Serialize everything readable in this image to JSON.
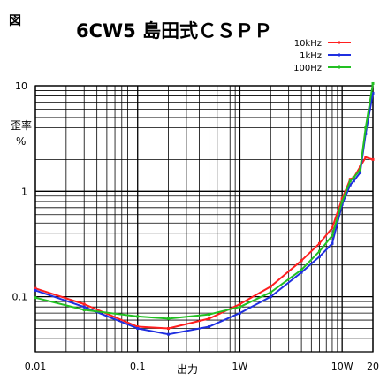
{
  "figure_label": "図",
  "colors": {
    "10kHz": "#ff1f1f",
    "1kHz": "#1f2fe0",
    "100Hz": "#22c022",
    "grid": "#000000"
  },
  "chart_data": {
    "type": "line",
    "title": "6CW5 島田式ＣＳＰＰ",
    "xlabel": "出力",
    "ylabel_line1": "歪率",
    "ylabel_line2": "%",
    "x_scale": "log",
    "y_scale": "log",
    "xlim": [
      0.01,
      20
    ],
    "ylim": [
      0.03,
      10
    ],
    "x_ticks": [
      {
        "value": 0.01,
        "label": "0.01"
      },
      {
        "value": 0.1,
        "label": "0.1"
      },
      {
        "value": 1,
        "label": "1W"
      },
      {
        "value": 10,
        "label": "10W"
      },
      {
        "value": 20,
        "label": "20"
      }
    ],
    "y_ticks": [
      {
        "value": 10,
        "label": "10"
      },
      {
        "value": 1,
        "label": "1"
      },
      {
        "value": 0.1,
        "label": "0.1"
      }
    ],
    "grid": true,
    "legend_position": "top-right",
    "series": [
      {
        "name": "10kHz",
        "color": "#ff1f1f",
        "x": [
          0.01,
          0.03,
          0.1,
          0.2,
          0.5,
          1,
          2,
          4,
          6,
          8,
          10,
          12,
          13,
          15,
          17,
          20
        ],
        "y": [
          0.12,
          0.085,
          0.052,
          0.05,
          0.062,
          0.085,
          0.125,
          0.22,
          0.32,
          0.45,
          0.85,
          1.3,
          1.35,
          1.7,
          2.1,
          2.0
        ]
      },
      {
        "name": "1kHz",
        "color": "#1f2fe0",
        "x": [
          0.01,
          0.03,
          0.1,
          0.2,
          0.5,
          1,
          2,
          4,
          6,
          8,
          10,
          12,
          13,
          15,
          17,
          20
        ],
        "y": [
          0.115,
          0.08,
          0.05,
          0.044,
          0.052,
          0.07,
          0.1,
          0.17,
          0.24,
          0.32,
          0.75,
          1.15,
          1.25,
          1.5,
          3.5,
          8.5
        ]
      },
      {
        "name": "100Hz",
        "color": "#22c022",
        "x": [
          0.01,
          0.03,
          0.1,
          0.2,
          0.5,
          1,
          2,
          4,
          6,
          8,
          10,
          12,
          13,
          15,
          17,
          20
        ],
        "y": [
          0.098,
          0.075,
          0.065,
          0.062,
          0.068,
          0.08,
          0.11,
          0.18,
          0.27,
          0.38,
          0.8,
          1.25,
          1.35,
          1.6,
          4.0,
          10.5
        ]
      }
    ]
  }
}
